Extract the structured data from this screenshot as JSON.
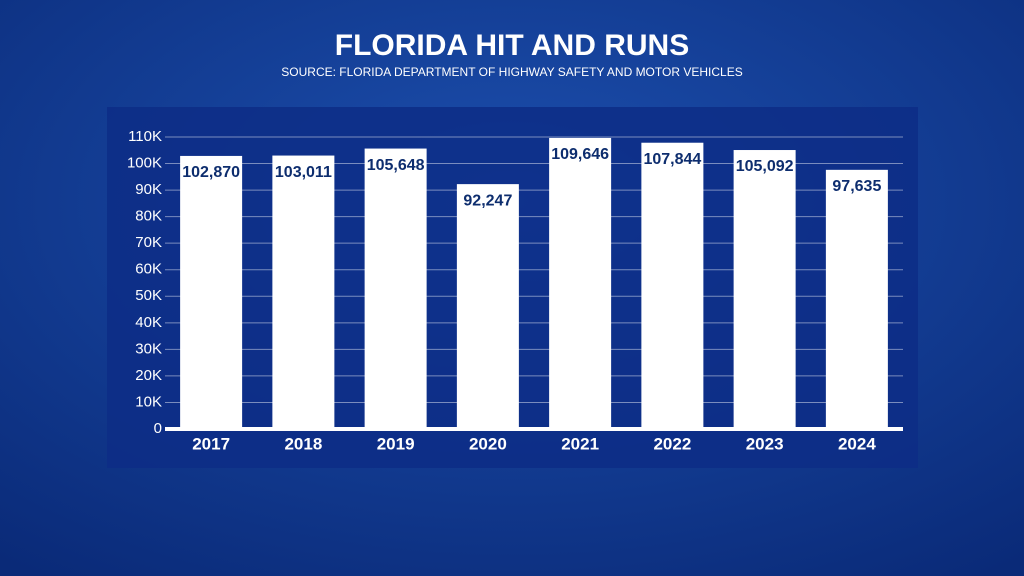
{
  "chart_data": {
    "type": "bar",
    "title": "FLORIDA HIT AND RUNS",
    "subtitle": "SOURCE: FLORIDA DEPARTMENT OF HIGHWAY SAFETY AND MOTOR VEHICLES",
    "categories": [
      "2017",
      "2018",
      "2019",
      "2020",
      "2021",
      "2022",
      "2023",
      "2024"
    ],
    "values": [
      102870,
      103011,
      105648,
      92247,
      109646,
      107844,
      105092,
      97635
    ],
    "value_labels": [
      "102,870",
      "103,011",
      "105,648",
      "92,247",
      "109,646",
      "107,844",
      "105,092",
      "97,635"
    ],
    "color": "#ffffff",
    "ylim": [
      0,
      110000
    ],
    "yticks": [
      0,
      {
        "value": 10000,
        "label": "10K"
      },
      {
        "value": 20000,
        "label": "20K"
      },
      {
        "value": 30000,
        "label": "30K"
      },
      {
        "value": 40000,
        "label": "40K"
      },
      {
        "value": 50000,
        "label": "50K"
      },
      {
        "value": 60000,
        "label": "60K"
      },
      {
        "value": 70000,
        "label": "70K"
      },
      {
        "value": 80000,
        "label": "80K"
      },
      {
        "value": 90000,
        "label": "90K"
      },
      {
        "value": 100000,
        "label": "100K"
      },
      {
        "value": 110000,
        "label": "110K"
      }
    ],
    "grid": true
  }
}
